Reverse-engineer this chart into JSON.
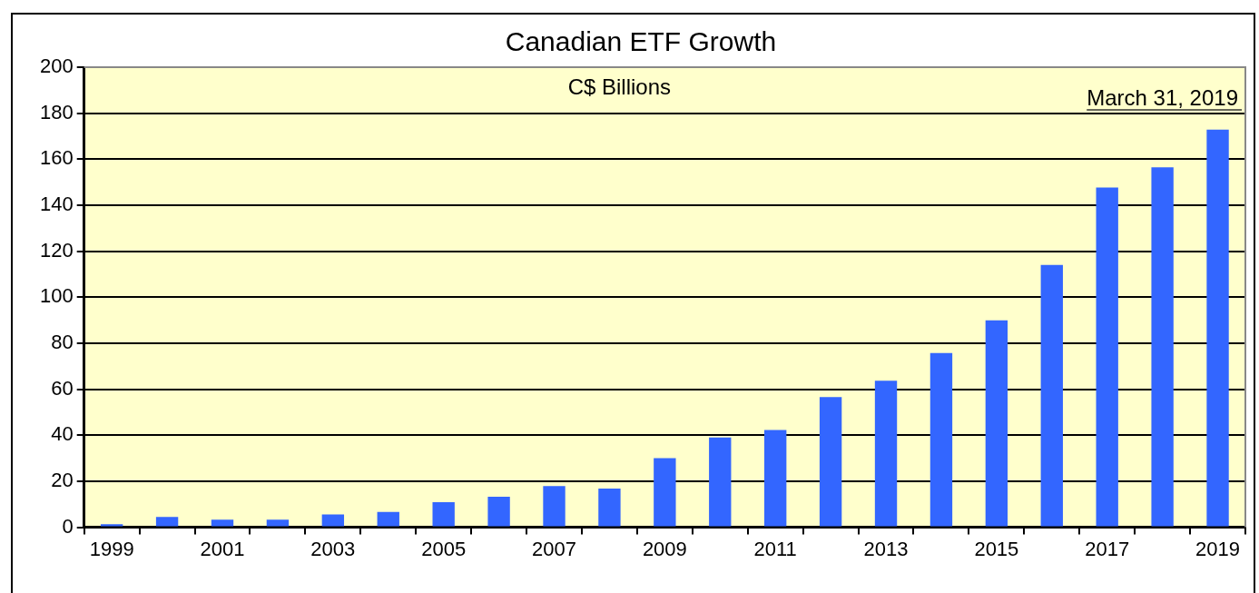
{
  "chart_data": {
    "type": "bar",
    "title": "Canadian ETF Growth",
    "categories": [
      "1999",
      null,
      "2001",
      null,
      "2003",
      null,
      "2005",
      null,
      "2007",
      null,
      "2009",
      null,
      "2011",
      null,
      "2013",
      null,
      "2015",
      null,
      "2017",
      null,
      "2019"
    ],
    "values": [
      1.3,
      4.5,
      3.3,
      3.3,
      5.6,
      6.7,
      10.9,
      13.3,
      17.9,
      16.8,
      30,
      39,
      42.3,
      56.6,
      63.7,
      75.7,
      90,
      114,
      147.7,
      156.5,
      172.9
    ],
    "color": "#3366ff",
    "ylim": [
      0,
      200
    ],
    "yticks": [
      0,
      20,
      40,
      60,
      80,
      100,
      120,
      140,
      160,
      180,
      200
    ],
    "grid": "y",
    "legend": false,
    "annotations": [
      "C$ Billions",
      "March 31, 2019"
    ]
  }
}
